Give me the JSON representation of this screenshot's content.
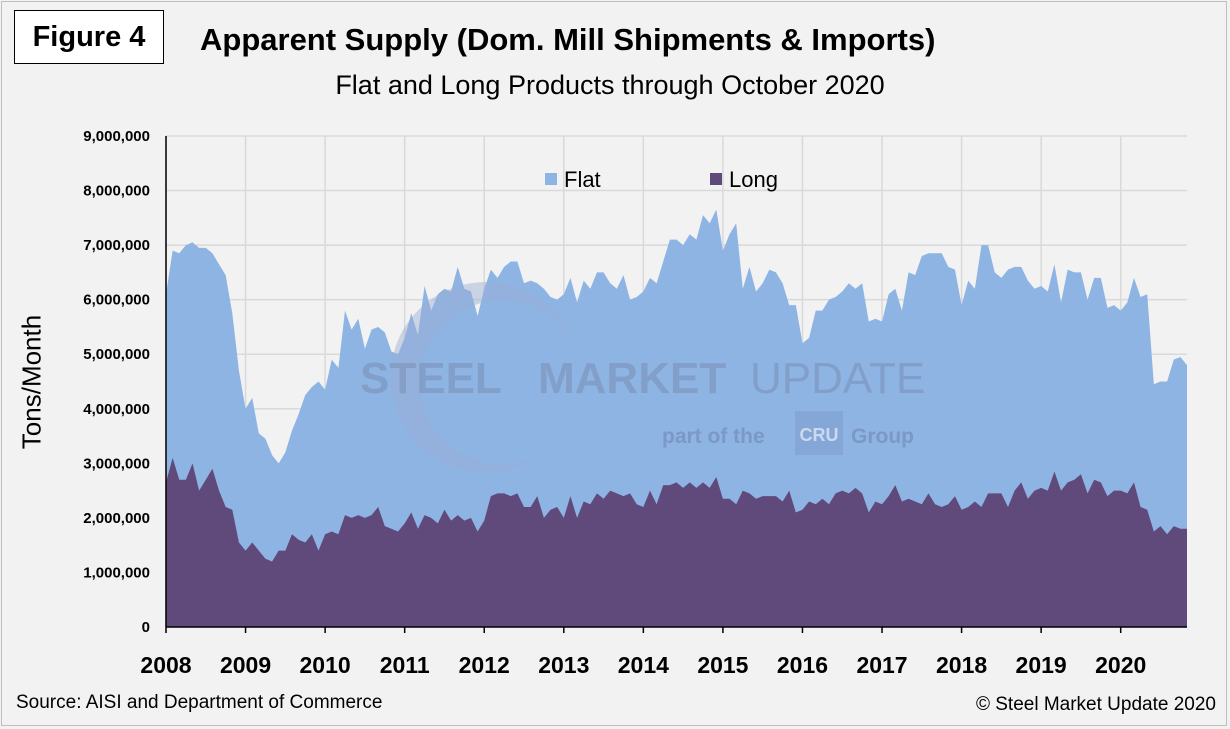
{
  "figure_label": "Figure 4",
  "source": "Source: AISI and Department of Commerce",
  "copyright": "© Steel Market Update 2020",
  "colors": {
    "flat": "#8eb4e3",
    "long": "#604a7b",
    "background": "#f2f2f2",
    "grid": "#d9d9d9"
  },
  "watermark": {
    "line1_bold": "STEEL",
    "line1_a": "MARKET",
    "line1_b": "UPDATE",
    "line2_a": "part of the",
    "line2_logo": "CRU",
    "line2_b": "Group"
  },
  "chart_data": {
    "type": "area",
    "title": "Apparent Supply (Dom. Mill Shipments & Imports)",
    "subtitle": "Flat and Long Products through October 2020",
    "ylabel": "Tons/Month",
    "xlabel": "",
    "ylim": [
      0,
      9000000
    ],
    "yticks": [
      0,
      1000000,
      2000000,
      3000000,
      4000000,
      5000000,
      6000000,
      7000000,
      8000000,
      9000000
    ],
    "ytick_labels": [
      "0",
      "1,000,000",
      "2,000,000",
      "3,000,000",
      "4,000,000",
      "5,000,000",
      "6,000,000",
      "7,000,000",
      "8,000,000",
      "9,000,000"
    ],
    "xticks": [
      "2008",
      "2009",
      "2010",
      "2011",
      "2012",
      "2013",
      "2014",
      "2015",
      "2016",
      "2017",
      "2018",
      "2019",
      "2020"
    ],
    "x_start": "Jan 2008",
    "x_end": "Oct 2020",
    "stacked": true,
    "legend": "top-center",
    "series": [
      {
        "name": "Long",
        "values": [
          2650000,
          3100000,
          2700000,
          2700000,
          3000000,
          2500000,
          2700000,
          2900000,
          2500000,
          2200000,
          2150000,
          1550000,
          1400000,
          1550000,
          1400000,
          1250000,
          1200000,
          1400000,
          1400000,
          1700000,
          1600000,
          1550000,
          1700000,
          1400000,
          1700000,
          1750000,
          1700000,
          2050000,
          2000000,
          2050000,
          2000000,
          2050000,
          2200000,
          1850000,
          1800000,
          1750000,
          1900000,
          2100000,
          1800000,
          2050000,
          2000000,
          1900000,
          2150000,
          1950000,
          2050000,
          1950000,
          2000000,
          1750000,
          1950000,
          2400000,
          2450000,
          2450000,
          2400000,
          2450000,
          2200000,
          2200000,
          2400000,
          2000000,
          2150000,
          2200000,
          2000000,
          2400000,
          2000000,
          2300000,
          2250000,
          2450000,
          2350000,
          2500000,
          2450000,
          2400000,
          2450000,
          2250000,
          2200000,
          2500000,
          2250000,
          2600000,
          2600000,
          2650000,
          2550000,
          2650000,
          2550000,
          2650000,
          2550000,
          2750000,
          2350000,
          2350000,
          2250000,
          2500000,
          2450000,
          2350000,
          2400000,
          2400000,
          2400000,
          2300000,
          2500000,
          2100000,
          2150000,
          2300000,
          2250000,
          2350000,
          2250000,
          2450000,
          2500000,
          2450000,
          2550000,
          2450000,
          2100000,
          2300000,
          2250000,
          2400000,
          2600000,
          2300000,
          2350000,
          2300000,
          2250000,
          2450000,
          2250000,
          2200000,
          2250000,
          2400000,
          2150000,
          2200000,
          2300000,
          2200000,
          2450000,
          2450000,
          2450000,
          2200000,
          2500000,
          2650000,
          2350000,
          2500000,
          2550000,
          2500000,
          2850000,
          2500000,
          2650000,
          2700000,
          2800000,
          2450000,
          2700000,
          2650000,
          2400000,
          2500000,
          2500000,
          2450000,
          2650000,
          2200000,
          2150000,
          1750000,
          1850000,
          1700000,
          1850000,
          1800000,
          1800000
        ]
      },
      {
        "name": "Flat",
        "values": [
          3450000,
          3800000,
          4150000,
          4300000,
          4050000,
          4450000,
          4250000,
          3950000,
          4150000,
          4250000,
          3600000,
          3150000,
          2600000,
          2650000,
          2150000,
          2200000,
          1950000,
          1600000,
          1800000,
          1900000,
          2300000,
          2700000,
          2700000,
          3100000,
          2650000,
          3150000,
          3050000,
          3750000,
          3450000,
          3600000,
          3100000,
          3400000,
          3300000,
          3550000,
          3250000,
          3250000,
          3400000,
          3650000,
          3550000,
          4200000,
          3800000,
          4200000,
          4050000,
          4200000,
          4550000,
          4250000,
          4150000,
          3950000,
          4250000,
          4150000,
          3950000,
          4150000,
          4300000,
          4250000,
          4100000,
          4150000,
          3900000,
          4200000,
          3900000,
          3800000,
          4100000,
          4000000,
          3950000,
          4050000,
          3950000,
          4050000,
          4150000,
          3800000,
          3750000,
          4050000,
          3550000,
          3800000,
          3950000,
          3900000,
          4050000,
          4100000,
          4500000,
          4450000,
          4450000,
          4550000,
          4550000,
          4900000,
          4850000,
          4900000,
          4550000,
          4850000,
          5150000,
          3700000,
          4150000,
          3800000,
          3900000,
          4150000,
          4100000,
          4000000,
          3400000,
          3800000,
          3050000,
          3000000,
          3550000,
          3450000,
          3750000,
          3600000,
          3650000,
          3850000,
          3650000,
          3850000,
          3500000,
          3350000,
          3350000,
          3700000,
          3600000,
          3500000,
          4150000,
          4150000,
          4550000,
          4400000,
          4600000,
          4650000,
          4350000,
          4150000,
          3750000,
          4150000,
          3900000,
          4800000,
          4550000,
          4050000,
          3950000,
          4350000,
          4100000,
          3950000,
          4000000,
          3700000,
          3700000,
          3650000,
          3800000,
          3450000,
          3900000,
          3800000,
          3700000,
          3550000,
          3700000,
          3750000,
          3450000,
          3400000,
          3300000,
          3500000,
          3750000,
          3850000,
          3950000,
          2700000,
          2650000,
          2800000,
          3050000,
          3150000,
          3000000
        ]
      }
    ]
  }
}
